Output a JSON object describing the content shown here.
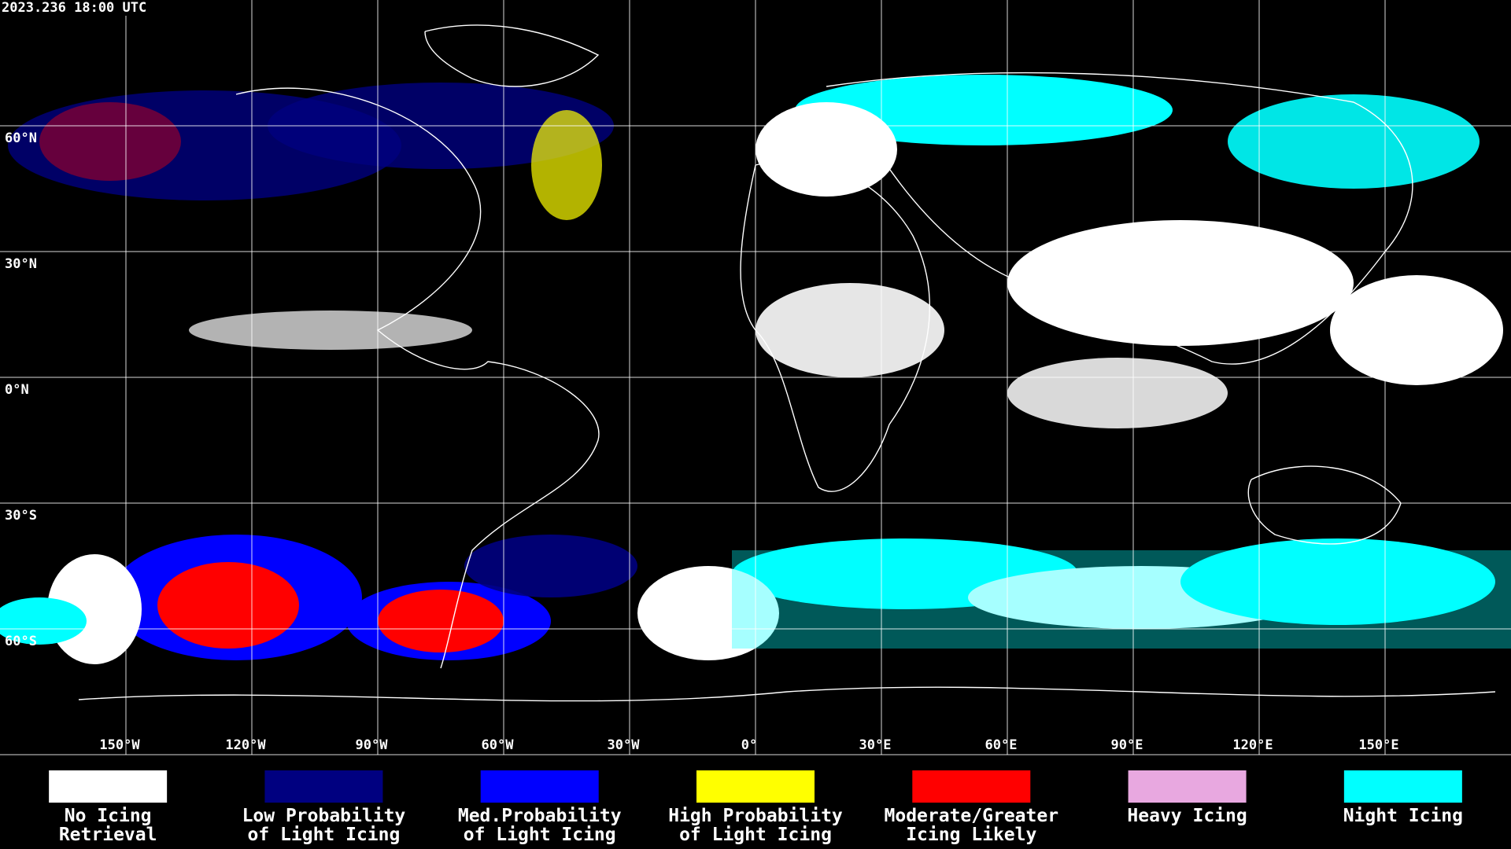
{
  "header": {
    "timestamp": "2023.236 18:00 UTC"
  },
  "map": {
    "lat_labels": [
      "60°N",
      "30°N",
      "0°N",
      "30°S",
      "60°S"
    ],
    "lon_labels": [
      "150°W",
      "120°W",
      "90°W",
      "60°W",
      "30°W",
      "0°",
      "30°E",
      "60°E",
      "90°E",
      "120°E",
      "150°E"
    ]
  },
  "legend": {
    "items": [
      {
        "lines": [
          "No Icing",
          "Retrieval"
        ],
        "color": "#ffffff"
      },
      {
        "lines": [
          "Low Probability",
          "of Light Icing"
        ],
        "color": "#000080"
      },
      {
        "lines": [
          "Med.Probability",
          "of Light Icing"
        ],
        "color": "#0000ff"
      },
      {
        "lines": [
          "High Probability",
          "of Light Icing"
        ],
        "color": "#ffff00"
      },
      {
        "lines": [
          "Moderate/Greater",
          "Icing Likely"
        ],
        "color": "#ff0000"
      },
      {
        "lines": [
          "Heavy Icing"
        ],
        "color": "#e8a8e0"
      },
      {
        "lines": [
          "Night Icing"
        ],
        "color": "#00ffff"
      }
    ]
  }
}
